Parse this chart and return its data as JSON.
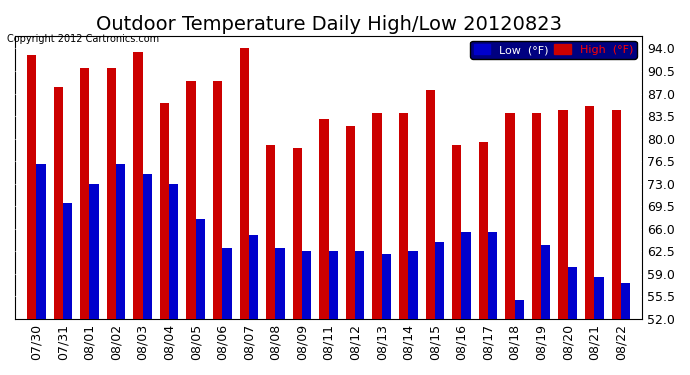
{
  "title": "Outdoor Temperature Daily High/Low 20120823",
  "copyright": "Copyright 2012 Cartronics.com",
  "ylabel_right_ticks": [
    52.0,
    55.5,
    59.0,
    62.5,
    66.0,
    69.5,
    73.0,
    76.5,
    80.0,
    83.5,
    87.0,
    90.5,
    94.0
  ],
  "dates": [
    "07/30",
    "07/31",
    "08/01",
    "08/02",
    "08/03",
    "08/04",
    "08/05",
    "08/06",
    "08/07",
    "08/08",
    "08/09",
    "08/11",
    "08/12",
    "08/13",
    "08/14",
    "08/15",
    "08/16",
    "08/17",
    "08/18",
    "08/19",
    "08/20",
    "08/21",
    "08/22"
  ],
  "high": [
    93.0,
    88.0,
    91.0,
    91.0,
    93.5,
    85.5,
    89.0,
    89.0,
    94.0,
    79.0,
    78.5,
    83.0,
    82.0,
    84.0,
    84.0,
    87.5,
    79.0,
    79.5,
    84.0,
    84.0,
    84.5,
    85.0,
    84.5
  ],
  "low": [
    76.0,
    70.0,
    73.0,
    76.0,
    74.5,
    73.0,
    67.5,
    63.0,
    65.0,
    63.0,
    62.5,
    62.5,
    62.5,
    62.0,
    62.5,
    64.0,
    65.5,
    65.5,
    55.0,
    63.5,
    60.0,
    58.5,
    57.5
  ],
  "high_color": "#cc0000",
  "low_color": "#0000cc",
  "bg_color": "#ffffff",
  "grid_color": "#cccccc",
  "title_fontsize": 14,
  "tick_fontsize": 9,
  "legend_low_label": "Low  (°F)",
  "legend_high_label": "High  (°F)",
  "ymin": 52.0,
  "ymax": 96.0,
  "bar_width": 0.35
}
